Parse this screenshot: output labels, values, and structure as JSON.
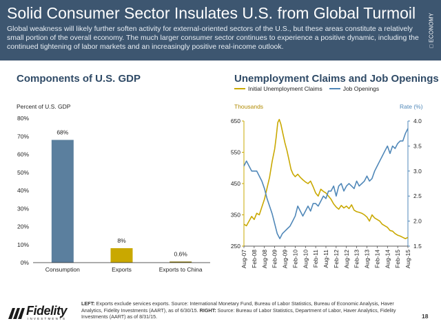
{
  "header": {
    "title": "Solid Consumer Sector Insulates U.S. from Global Turmoil",
    "subtitle": "Global weakness will likely further soften activity for external-oriented sectors of the U.S., but these areas constitute a relatively small portion of the overall economy. The much larger consumer sector continues to experience a positive dynamic, including the continued tightening of labor markets and an increasingly positive real-income outlook.",
    "side_tab": "□ ECONOMY"
  },
  "left_chart": {
    "title": "Components of U.S. GDP",
    "y_axis_label": "Percent of U.S. GDP"
  },
  "right_chart": {
    "title": "Unemployment Claims and Job Openings",
    "left_axis_label": "Thousands",
    "right_axis_label": "Rate (%)"
  },
  "colors": {
    "header_bg": "#3d5670",
    "bar_consumption": "#5b7f9e",
    "bar_exports": "#c9a800",
    "bar_china": "#8a7a10",
    "claims_line": "#c9a800",
    "openings_line": "#4f87b8",
    "title_blue": "#2f4a66"
  },
  "chart_data": [
    {
      "type": "bar",
      "title": "Components of U.S. GDP",
      "ylabel": "Percent of U.S. GDP",
      "categories": [
        "Consumption",
        "Exports",
        "Exports to China"
      ],
      "values": [
        68,
        8,
        0.6
      ],
      "value_labels": [
        "68%",
        "8%",
        "0.6%"
      ],
      "ylim": [
        0,
        80
      ],
      "yticks": [
        "0%",
        "10%",
        "20%",
        "30%",
        "40%",
        "50%",
        "60%",
        "70%",
        "80%"
      ],
      "grid": false
    },
    {
      "type": "line",
      "title": "Unemployment Claims and Job Openings",
      "ylabel_left": "Thousands",
      "ylabel_right": "Rate (%)",
      "x_labels": [
        "Aug-07",
        "Feb-08",
        "Aug-08",
        "Feb-09",
        "Aug-09",
        "Feb-10",
        "Aug-10",
        "Feb-11",
        "Aug-11",
        "Feb-12",
        "Aug-12",
        "Feb-13",
        "Aug-13",
        "Feb-14",
        "Aug-14",
        "Feb-15",
        "Aug-15"
      ],
      "ylim_left": [
        250,
        650
      ],
      "yticks_left": [
        "250",
        "350",
        "450",
        "550",
        "650"
      ],
      "ylim_right": [
        1.5,
        4.0
      ],
      "yticks_right": [
        "1.5",
        "2.0",
        "2.5",
        "3.0",
        "3.5",
        "4.0"
      ],
      "legend_position": "top-left",
      "grid": false,
      "series": [
        {
          "name": "Initial Unemployment Claims",
          "axis": "left",
          "points": [
            [
              0,
              320
            ],
            [
              0.25,
              315
            ],
            [
              0.5,
              330
            ],
            [
              0.75,
              345
            ],
            [
              1,
              335
            ],
            [
              1.25,
              355
            ],
            [
              1.5,
              350
            ],
            [
              1.75,
              375
            ],
            [
              2,
              400
            ],
            [
              2.25,
              435
            ],
            [
              2.5,
              470
            ],
            [
              2.75,
              520
            ],
            [
              3,
              560
            ],
            [
              3.15,
              600
            ],
            [
              3.3,
              645
            ],
            [
              3.45,
              655
            ],
            [
              3.6,
              640
            ],
            [
              3.8,
              610
            ],
            [
              4,
              580
            ],
            [
              4.2,
              555
            ],
            [
              4.4,
              525
            ],
            [
              4.6,
              495
            ],
            [
              4.8,
              480
            ],
            [
              5,
              472
            ],
            [
              5.25,
              480
            ],
            [
              5.5,
              470
            ],
            [
              5.75,
              462
            ],
            [
              6,
              455
            ],
            [
              6.25,
              450
            ],
            [
              6.5,
              458
            ],
            [
              6.75,
              440
            ],
            [
              7,
              420
            ],
            [
              7.25,
              410
            ],
            [
              7.5,
              432
            ],
            [
              7.75,
              425
            ],
            [
              8,
              420
            ],
            [
              8.25,
              410
            ],
            [
              8.5,
              400
            ],
            [
              8.75,
              385
            ],
            [
              9,
              375
            ],
            [
              9.25,
              368
            ],
            [
              9.5,
              380
            ],
            [
              9.75,
              372
            ],
            [
              10,
              378
            ],
            [
              10.25,
              370
            ],
            [
              10.5,
              382
            ],
            [
              10.75,
              365
            ],
            [
              11,
              360
            ],
            [
              11.25,
              358
            ],
            [
              11.5,
              355
            ],
            [
              11.75,
              350
            ],
            [
              12,
              343
            ],
            [
              12.25,
              330
            ],
            [
              12.5,
              350
            ],
            [
              12.75,
              340
            ],
            [
              13,
              335
            ],
            [
              13.25,
              330
            ],
            [
              13.5,
              320
            ],
            [
              13.75,
              315
            ],
            [
              14,
              310
            ],
            [
              14.25,
              300
            ],
            [
              14.5,
              298
            ],
            [
              14.75,
              290
            ],
            [
              15,
              285
            ],
            [
              15.25,
              282
            ],
            [
              15.5,
              278
            ],
            [
              15.75,
              274
            ],
            [
              16,
              278
            ]
          ]
        },
        {
          "name": "Job Openings",
          "axis": "right",
          "points": [
            [
              0,
              3.1
            ],
            [
              0.25,
              3.2
            ],
            [
              0.5,
              3.1
            ],
            [
              0.75,
              3.0
            ],
            [
              1,
              3.0
            ],
            [
              1.25,
              3.0
            ],
            [
              1.5,
              2.9
            ],
            [
              1.75,
              2.8
            ],
            [
              2,
              2.65
            ],
            [
              2.25,
              2.45
            ],
            [
              2.5,
              2.3
            ],
            [
              2.75,
              2.15
            ],
            [
              3,
              1.95
            ],
            [
              3.25,
              1.75
            ],
            [
              3.5,
              1.65
            ],
            [
              3.75,
              1.75
            ],
            [
              4,
              1.8
            ],
            [
              4.25,
              1.85
            ],
            [
              4.5,
              1.9
            ],
            [
              4.75,
              2.0
            ],
            [
              5,
              2.1
            ],
            [
              5.25,
              2.3
            ],
            [
              5.5,
              2.2
            ],
            [
              5.75,
              2.1
            ],
            [
              6,
              2.2
            ],
            [
              6.25,
              2.3
            ],
            [
              6.5,
              2.2
            ],
            [
              6.75,
              2.35
            ],
            [
              7,
              2.35
            ],
            [
              7.25,
              2.3
            ],
            [
              7.5,
              2.4
            ],
            [
              7.75,
              2.5
            ],
            [
              8,
              2.45
            ],
            [
              8.25,
              2.6
            ],
            [
              8.5,
              2.6
            ],
            [
              8.75,
              2.7
            ],
            [
              9,
              2.5
            ],
            [
              9.25,
              2.7
            ],
            [
              9.5,
              2.75
            ],
            [
              9.75,
              2.6
            ],
            [
              10,
              2.7
            ],
            [
              10.25,
              2.75
            ],
            [
              10.5,
              2.7
            ],
            [
              10.75,
              2.65
            ],
            [
              11,
              2.8
            ],
            [
              11.25,
              2.7
            ],
            [
              11.5,
              2.75
            ],
            [
              11.75,
              2.8
            ],
            [
              12,
              2.9
            ],
            [
              12.25,
              2.8
            ],
            [
              12.5,
              2.85
            ],
            [
              12.75,
              3.0
            ],
            [
              13,
              3.1
            ],
            [
              13.25,
              3.2
            ],
            [
              13.5,
              3.3
            ],
            [
              13.75,
              3.4
            ],
            [
              14,
              3.5
            ],
            [
              14.25,
              3.35
            ],
            [
              14.5,
              3.5
            ],
            [
              14.75,
              3.45
            ],
            [
              15,
              3.55
            ],
            [
              15.25,
              3.6
            ],
            [
              15.5,
              3.6
            ],
            [
              15.75,
              3.75
            ],
            [
              16,
              3.85
            ]
          ]
        }
      ]
    }
  ],
  "footer": {
    "logo_text": "Fidelity",
    "logo_subtext": "INVESTMENTS",
    "left_prefix": "LEFT:",
    "left_note": " Exports exclude services exports. Source: International Monetary Fund, Bureau of Labor Statistics, Bureau of Economic Analysis, Haver Analytics, Fidelity Investments (AART), as of 6/30/15. ",
    "right_prefix": "RIGHT:",
    "right_note": " Source: Bureau of Labor Statistics, Department of Labor, Haver Analytics, Fidelity Investments (AART) as of 8/31/15.",
    "page_number": "18"
  }
}
